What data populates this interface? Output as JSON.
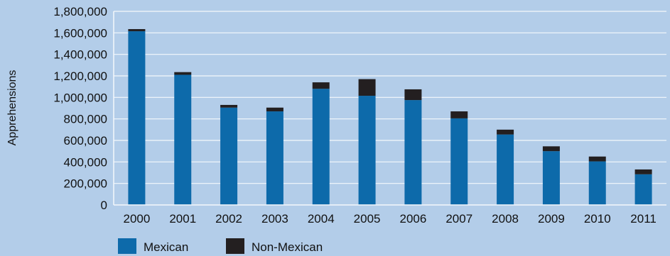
{
  "chart_data": {
    "type": "bar",
    "stacked": true,
    "ylabel": "Apprehensions",
    "xlabel": "",
    "ylim": [
      0,
      1800000
    ],
    "ytick_step": 200000,
    "ytick_labels": [
      "0",
      "200,000",
      "400,000",
      "600,000",
      "800,000",
      "1,000,000",
      "1,200,000",
      "1,400,000",
      "1,600,000",
      "1,800,000"
    ],
    "categories": [
      "2000",
      "2001",
      "2002",
      "2003",
      "2004",
      "2005",
      "2006",
      "2007",
      "2008",
      "2009",
      "2010",
      "2011"
    ],
    "series": [
      {
        "name": "Mexican",
        "color": "#0d6aaa",
        "values": [
          1615000,
          1210000,
          905000,
          870000,
          1080000,
          1015000,
          975000,
          805000,
          655000,
          500000,
          405000,
          285000
        ]
      },
      {
        "name": "Non-Mexican",
        "color": "#231f20",
        "values": [
          20000,
          25000,
          25000,
          35000,
          60000,
          155000,
          100000,
          65000,
          45000,
          45000,
          45000,
          45000
        ]
      }
    ],
    "grid": true,
    "legend_position": "bottom-left"
  }
}
